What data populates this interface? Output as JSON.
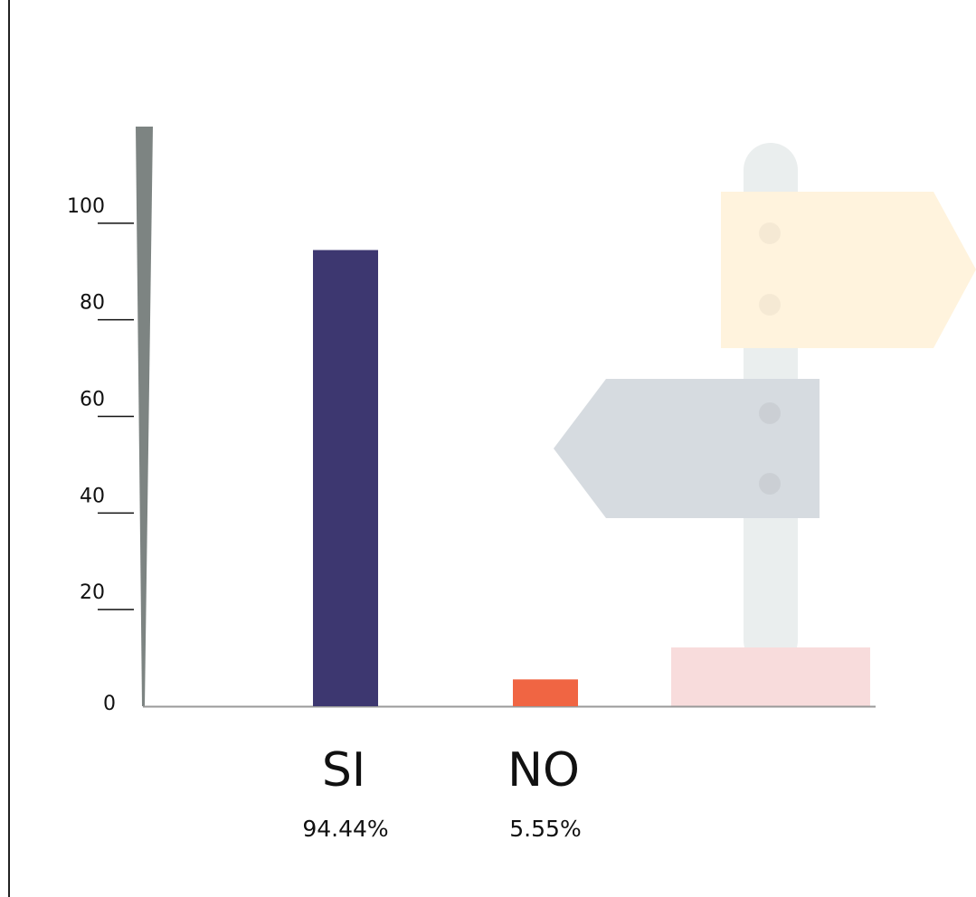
{
  "chart_data": {
    "type": "bar",
    "categories": [
      "SI",
      "NO"
    ],
    "values": [
      94.44,
      5.55
    ],
    "value_labels": [
      "94.44%",
      "5.55%"
    ],
    "colors": [
      "#3d3770",
      "#f06543"
    ],
    "ylim": [
      0,
      120
    ],
    "yticks": [
      0,
      20,
      40,
      60,
      80,
      100
    ]
  }
}
